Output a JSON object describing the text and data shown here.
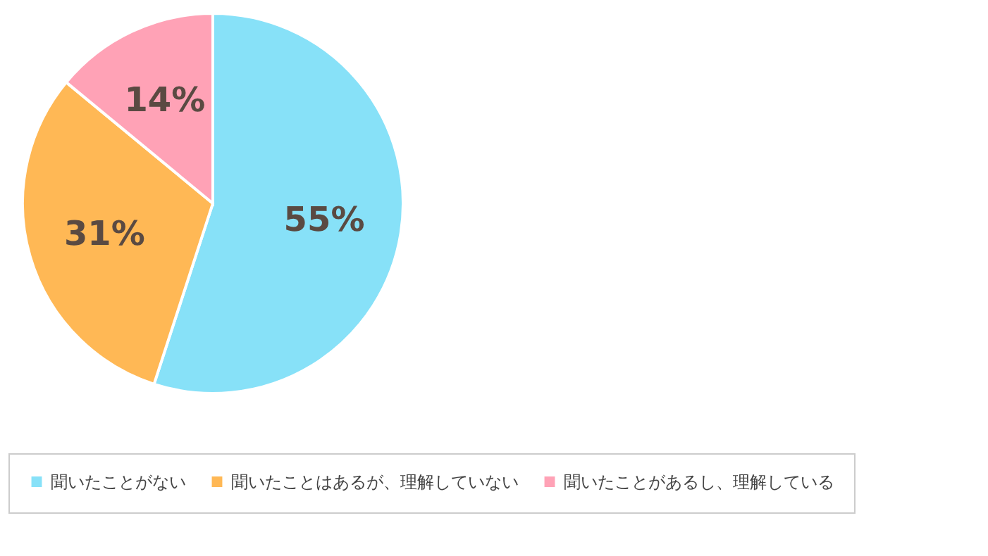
{
  "chart_data": {
    "type": "pie",
    "categories": [
      "聞いたことがない",
      "聞いたことはあるが、理解していない",
      "聞いたことがあるし、理解している"
    ],
    "values": [
      55,
      31,
      14
    ],
    "colors": [
      "#87e1f8",
      "#ffb855",
      "#ffa2b6"
    ],
    "value_labels": [
      "55%",
      "31%",
      "14%"
    ],
    "legend": "bottom"
  }
}
